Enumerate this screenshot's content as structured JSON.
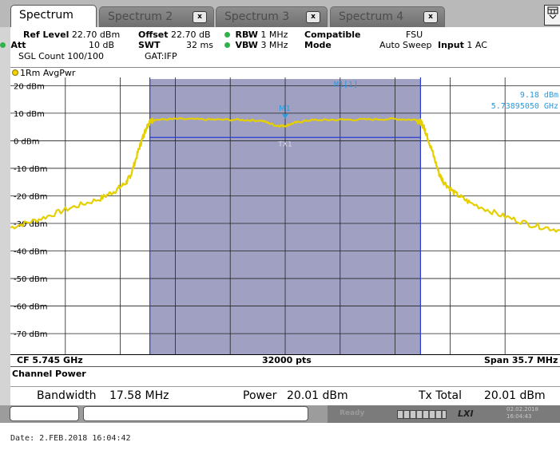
{
  "tabs": [
    {
      "label": "Spectrum",
      "active": true
    },
    {
      "label": "Spectrum 2",
      "close": "x"
    },
    {
      "label": "Spectrum 3",
      "close": "x"
    },
    {
      "label": "Spectrum 4",
      "close": "x"
    }
  ],
  "corner_icon": "display-config-icon",
  "settings": {
    "ref_level_label": "Ref Level",
    "ref_level_value": "22.70 dBm",
    "offset_label": "Offset",
    "offset_value": "22.70 dB",
    "rbw_label": "RBW",
    "rbw_value": "1 MHz",
    "compatible_label": "Compatible",
    "compatible_value": "FSU",
    "att_label": "Att",
    "att_value": "10 dB",
    "swt_label": "SWT",
    "swt_value": "32 ms",
    "vbw_label": "VBW",
    "vbw_value": "3 MHz",
    "mode_label": "Mode",
    "mode_value": "Auto Sweep",
    "input_label": "Input",
    "input_value": "1 AC",
    "sgl_count": "SGL Count 100/100",
    "gat": "GAT:IFP",
    "indicator_color": "#2fb14c"
  },
  "trace": {
    "label": "1Rm AvgPwr",
    "color": "#e6cf00"
  },
  "marker": {
    "name": "M1",
    "readout_label": "M1[1]",
    "level": "9.18 dBm",
    "frequency": "5.73895050 GHz",
    "color": "#2a9be0"
  },
  "channel_label": "TX1",
  "chart_data": {
    "type": "line",
    "y_tick_labels": [
      "20 dBm",
      "10 dBm",
      "0 dBm",
      "-10 dBm",
      "-20 dBm",
      "-30 dBm",
      "-40 dBm",
      "-50 dBm",
      "-60 dBm",
      "-70 dBm"
    ],
    "ylim": [
      -77.5,
      23
    ],
    "xlim": [
      -17.85,
      17.85
    ],
    "x_unit": "MHz offset from center",
    "grid": true,
    "channel_band": [
      -8.79,
      8.79
    ],
    "channel_power_line": 1.2,
    "channel_fill": "#a0a0c2",
    "series": [
      {
        "x": [
          -17.85,
          -16,
          -14,
          -12,
          -11,
          -10.3,
          -10,
          -9.5,
          -9.2,
          -9.0,
          -8.8,
          -8.5,
          -7,
          -5,
          -3,
          -1.5,
          -0.6,
          0,
          0.6,
          1.5,
          3,
          5,
          7,
          8.5,
          8.8,
          9.0,
          9.2,
          9.5,
          10,
          10.3,
          11,
          12,
          14,
          16,
          17.85
        ],
        "y": [
          -31.5,
          -28.5,
          -24.5,
          -21,
          -18,
          -15,
          -12,
          -3,
          2,
          5,
          6.8,
          7.6,
          7.9,
          7.7,
          7.6,
          7.3,
          5.5,
          5.4,
          6.5,
          7.4,
          7.6,
          7.7,
          7.9,
          7.6,
          6.8,
          5,
          2,
          -3,
          -12,
          -15,
          -19,
          -22.5,
          -27,
          -30.5,
          -32.5
        ]
      }
    ]
  },
  "footer": {
    "cf": "CF 5.745 GHz",
    "points": "32000 pts",
    "span": "Span 35.7 MHz"
  },
  "result": {
    "title": "Channel Power",
    "bandwidth_label": "Bandwidth",
    "bandwidth_value": "17.58 MHz",
    "power_label": "Power",
    "power_value": "20.01 dBm",
    "tx_total_label": "Tx Total",
    "tx_total_value": "20.01 dBm"
  },
  "status": {
    "ready": "Ready",
    "lxi": "LXI",
    "date_line1": "02.02.2018",
    "date_line2": "16:04:43"
  },
  "date_stamp": "Date: 2.FEB.2018  16:04:42"
}
